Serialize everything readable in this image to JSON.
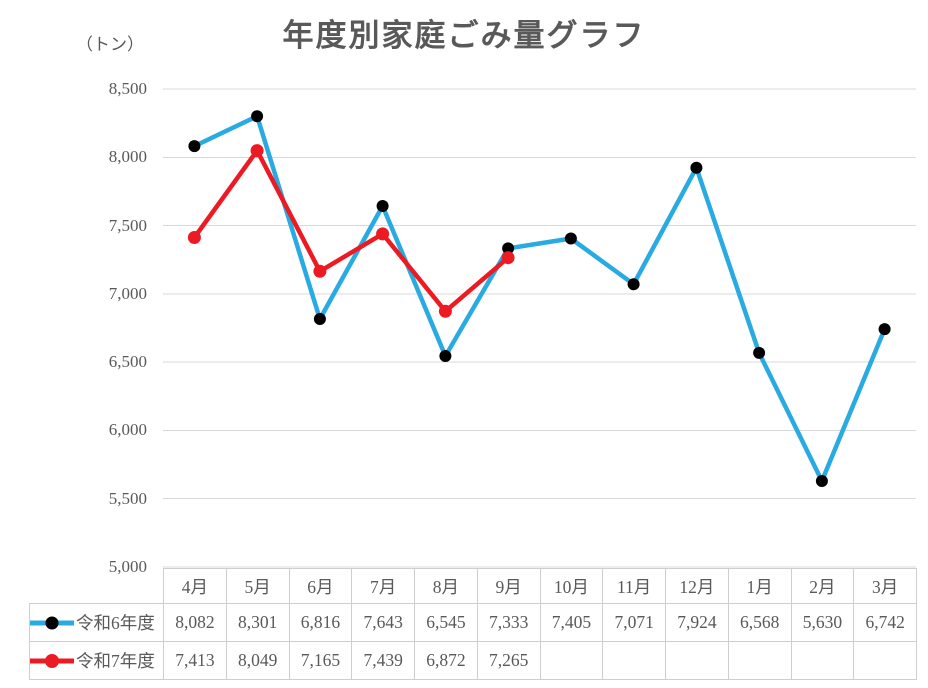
{
  "chart": {
    "title": "年度別家庭ごみ量グラフ",
    "unit_label": "（トン）"
  },
  "colors": {
    "grid": "#D9D9D9",
    "table_border": "#CFCDCD",
    "text": "#595959"
  },
  "chart_data": {
    "type": "line",
    "title": "年度別家庭ごみ量グラフ",
    "ylabel": "（トン）",
    "categories": [
      "4月",
      "5月",
      "6月",
      "7月",
      "8月",
      "9月",
      "10月",
      "11月",
      "12月",
      "1月",
      "2月",
      "3月"
    ],
    "series": [
      {
        "name": "令和6年度",
        "line_color": "#29ABE2",
        "marker_color": "#000000",
        "marker_radius": 6,
        "values": [
          8082,
          8301,
          6816,
          7643,
          6545,
          7333,
          7405,
          7071,
          7924,
          6568,
          5630,
          6742
        ]
      },
      {
        "name": "令和7年度",
        "line_color": "#EC1B23",
        "marker_color": "#EC1B23",
        "marker_radius": 6.5,
        "values": [
          7413,
          8049,
          7165,
          7439,
          6872,
          7265,
          null,
          null,
          null,
          null,
          null,
          null
        ]
      }
    ],
    "ylim": [
      5000,
      8500
    ],
    "y_tick_step": 500,
    "y_tick_labels": [
      "8,500",
      "8,000",
      "7,500",
      "7,000",
      "6,500",
      "6,000",
      "5,500",
      "5,000"
    ],
    "grid": true,
    "legend_position": "table-left",
    "data_table": true
  }
}
